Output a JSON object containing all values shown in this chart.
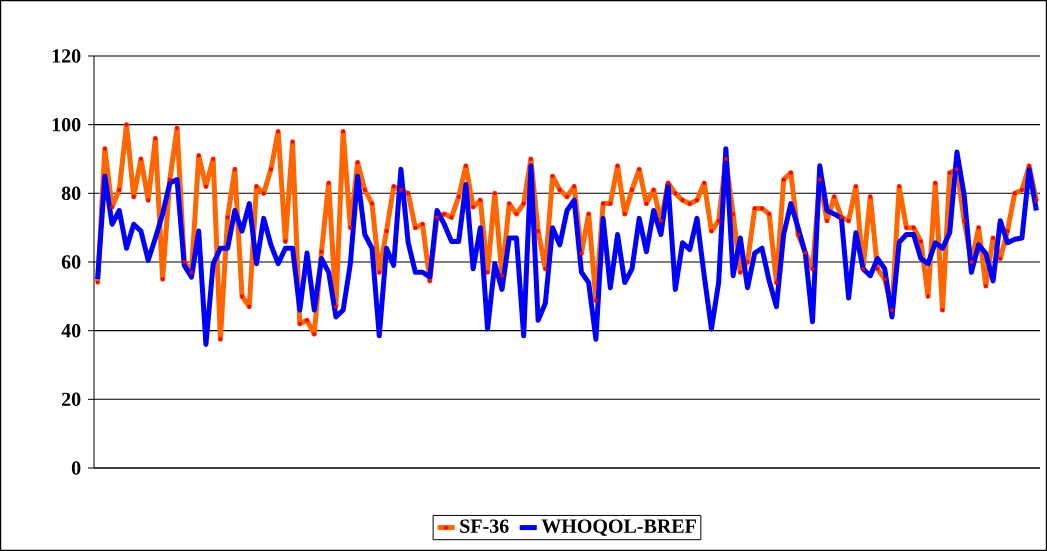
{
  "chart_data": {
    "type": "line",
    "categories": [
      null,
      null,
      null,
      null,
      null,
      null,
      null,
      null,
      null,
      null,
      null,
      null,
      null,
      null,
      null,
      null,
      null,
      null,
      null,
      null,
      null,
      null,
      null,
      null,
      null,
      null,
      null,
      null,
      null,
      null,
      null,
      null,
      null,
      null,
      null,
      null,
      null,
      null,
      null,
      null,
      null,
      null,
      null,
      null,
      null,
      null,
      null,
      null,
      null,
      null,
      null,
      null,
      null,
      null,
      null,
      null,
      null,
      null,
      null,
      null,
      null,
      null,
      null,
      null,
      null,
      null,
      null,
      null,
      null,
      null,
      null,
      null,
      null,
      null,
      null,
      null,
      null,
      null,
      null,
      null,
      null,
      null,
      null,
      null,
      null,
      null,
      null,
      null,
      null,
      null,
      null,
      null,
      null,
      null,
      null,
      null,
      null,
      null,
      null,
      null,
      null,
      null,
      null,
      null,
      null,
      null,
      null,
      null,
      null,
      null,
      null,
      null,
      null,
      null,
      null,
      null,
      null,
      null,
      null,
      null,
      null,
      null,
      null,
      null,
      null,
      null,
      null,
      null,
      null,
      null,
      null
    ],
    "series": [
      {
        "name": "SF-36",
        "color": "#ff6600",
        "marker": "square",
        "values": [
          54,
          93,
          76,
          81,
          100,
          79,
          90,
          78,
          96,
          55,
          84,
          99,
          60,
          57,
          91,
          82,
          90,
          37.5,
          73,
          87,
          50,
          47,
          82,
          80,
          87,
          98,
          66,
          95,
          42,
          43,
          39,
          63,
          83,
          47,
          98,
          70,
          89,
          81,
          77,
          57,
          69,
          82,
          81,
          80,
          70,
          71,
          54.5,
          73,
          74,
          73,
          79,
          88,
          76,
          78,
          57,
          80,
          56,
          77,
          74,
          77,
          90,
          69,
          58,
          85,
          81,
          79,
          82,
          62.5,
          74,
          48.8,
          77,
          77,
          88,
          74,
          81,
          87,
          77,
          81,
          72,
          83,
          80,
          78,
          77,
          78,
          83,
          69,
          72,
          90,
          74,
          57,
          60,
          75.6,
          75.6,
          74,
          54,
          84,
          86,
          68,
          62.7,
          58,
          84,
          72,
          79,
          73,
          72,
          82,
          58,
          79,
          58,
          55,
          46,
          82,
          70,
          70,
          66,
          50,
          83,
          46,
          86,
          87,
          72,
          60,
          70,
          53,
          67,
          61,
          69,
          80,
          81,
          88,
          78
        ]
      },
      {
        "name": "WHOQOL-BREF",
        "color": "#0000ff",
        "marker": "none",
        "values": [
          55,
          85,
          71,
          75,
          64,
          71,
          69,
          60.5,
          67,
          74,
          83,
          84,
          59,
          55.6,
          69,
          36,
          59.5,
          64,
          64,
          75,
          69,
          77,
          59.5,
          72.7,
          65,
          59.5,
          64,
          64,
          46,
          62.6,
          46,
          61,
          57,
          44,
          46,
          59.5,
          85,
          68,
          64,
          38.5,
          64,
          59,
          87,
          65.7,
          57,
          57,
          55.6,
          75,
          71,
          66,
          66,
          82.6,
          58,
          70,
          40.5,
          59.5,
          52,
          67,
          67,
          38.5,
          88,
          43,
          48,
          70,
          65,
          75,
          78,
          57,
          54,
          37.5,
          72.7,
          52.5,
          68,
          54,
          58,
          72.7,
          63,
          75,
          68,
          82.6,
          52,
          65.6,
          63.6,
          72.7,
          56,
          40.5,
          54,
          93,
          56,
          67,
          52.5,
          62.6,
          64,
          54.5,
          47,
          68,
          77,
          70,
          62.6,
          42.6,
          88,
          75,
          74,
          72.7,
          49.5,
          68.5,
          58,
          56,
          61,
          58,
          44,
          65.7,
          68,
          68,
          61,
          59.5,
          65.6,
          64,
          68.5,
          92,
          79.5,
          57,
          65,
          62.5,
          54.5,
          72,
          65.6,
          66.6,
          67,
          87,
          75
        ]
      }
    ],
    "ylim": [
      0,
      120
    ],
    "yticks": [
      0,
      20,
      40,
      60,
      80,
      100,
      120
    ],
    "grid": "y",
    "legend": "bottom",
    "line_style": "solid"
  }
}
